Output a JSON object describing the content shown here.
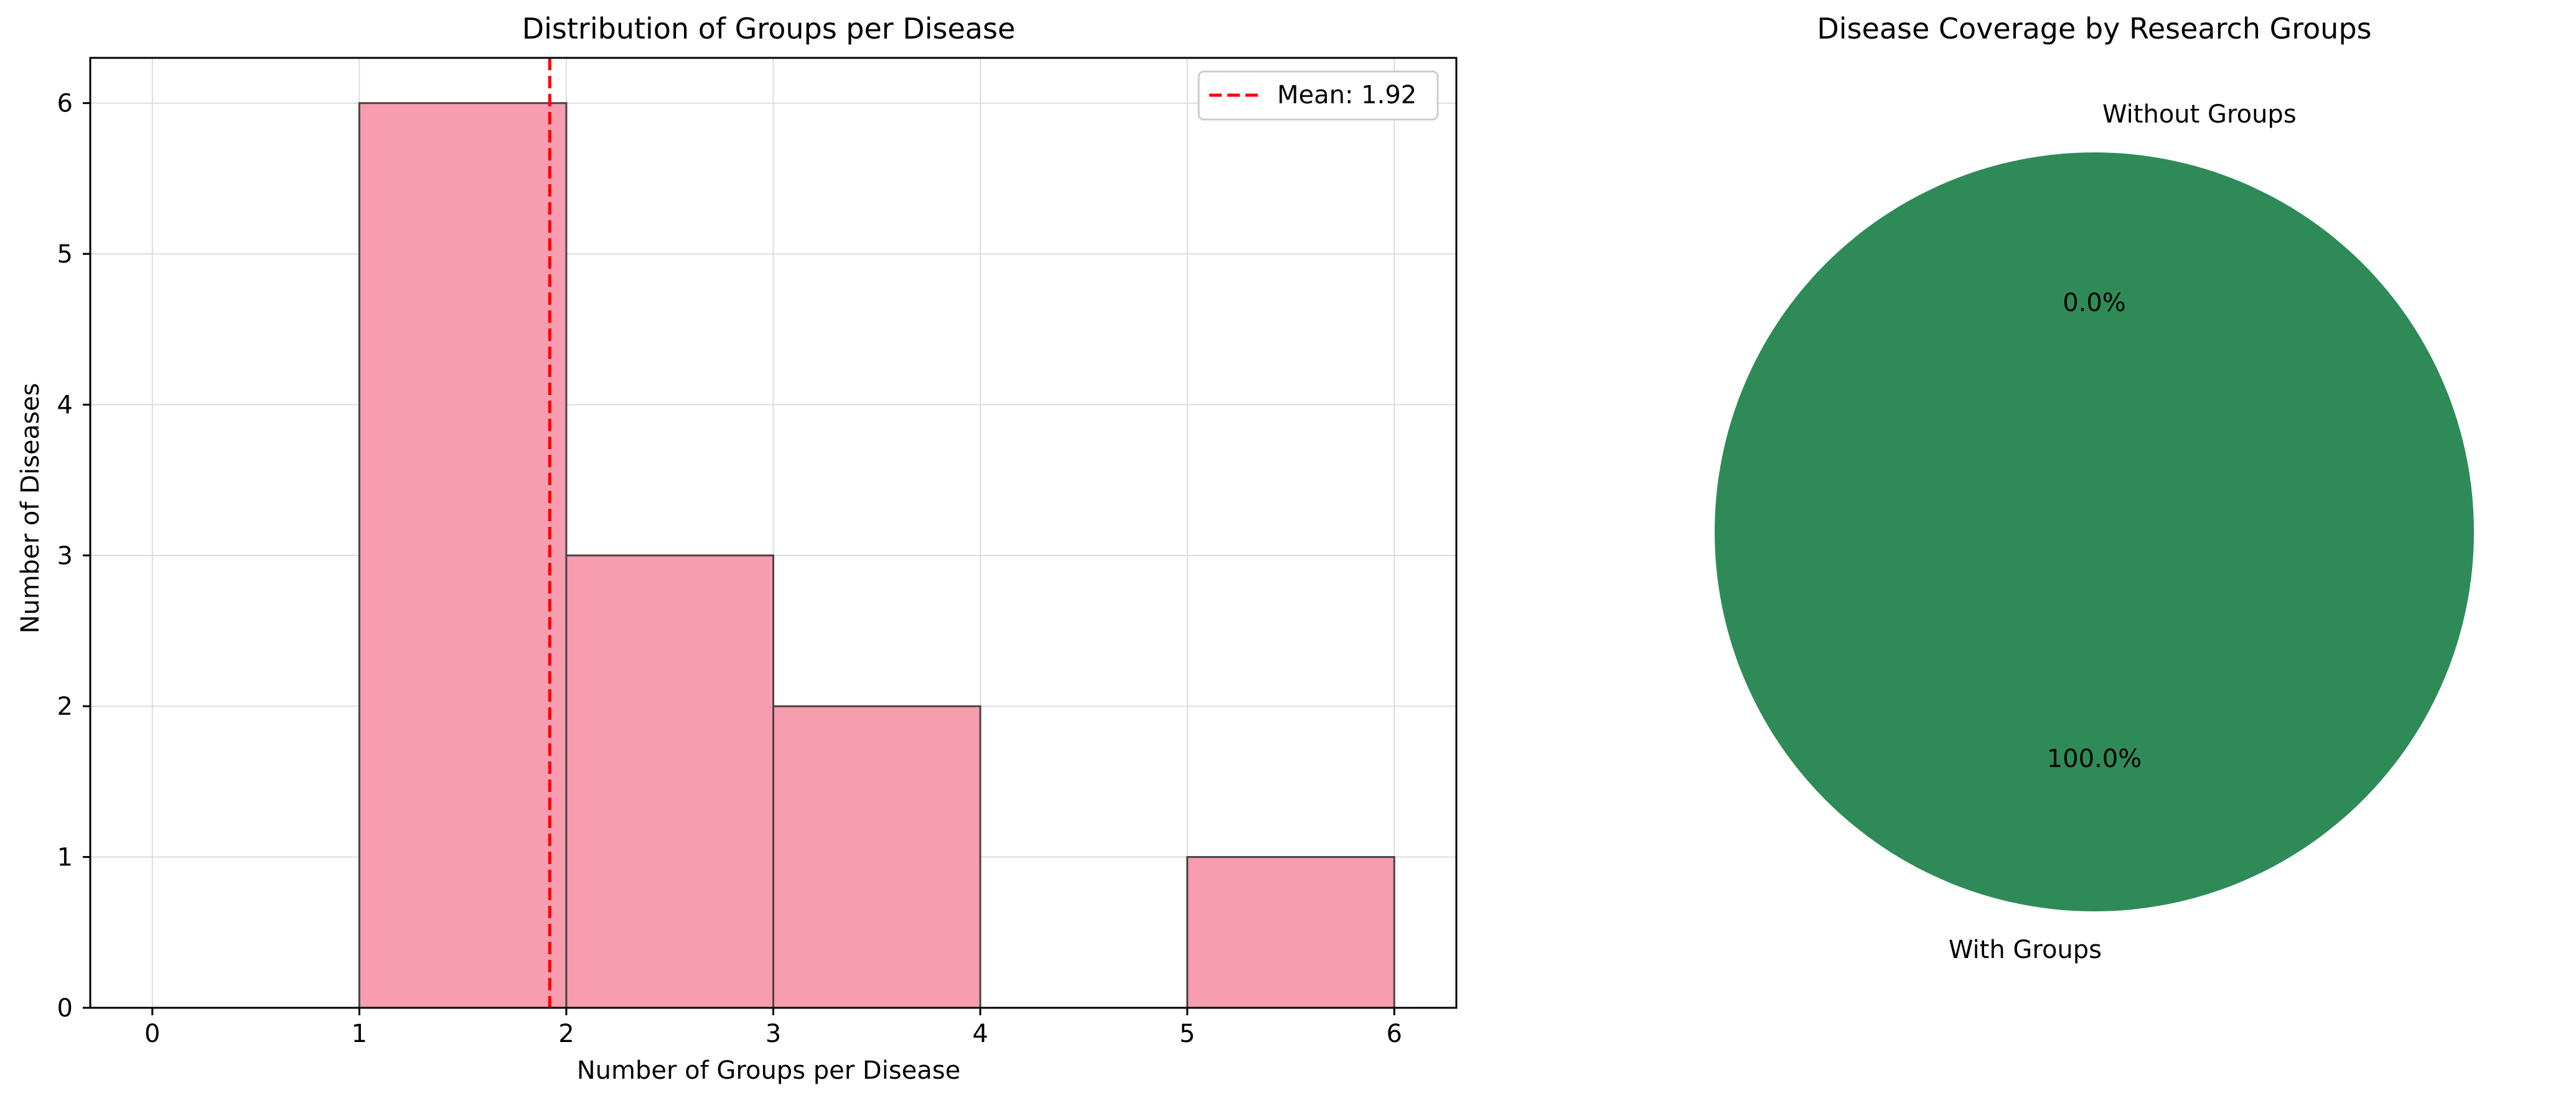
{
  "chart_data": [
    {
      "type": "bar",
      "title": "Distribution of Groups per Disease",
      "xlabel": "Number of Groups per Disease",
      "ylabel": "Number of Diseases",
      "xlim": [
        -0.3,
        6.3
      ],
      "ylim": [
        0,
        6.3
      ],
      "xticks": [
        0,
        1,
        2,
        3,
        4,
        5,
        6
      ],
      "yticks": [
        0,
        1,
        2,
        3,
        4,
        5,
        6
      ],
      "grid": true,
      "bins": [
        {
          "x0": 0,
          "x1": 1,
          "value": 0
        },
        {
          "x0": 1,
          "x1": 2,
          "value": 6
        },
        {
          "x0": 2,
          "x1": 3,
          "value": 3
        },
        {
          "x0": 3,
          "x1": 4,
          "value": 2
        },
        {
          "x0": 4,
          "x1": 5,
          "value": 0
        },
        {
          "x0": 5,
          "x1": 6,
          "value": 1
        }
      ],
      "bar_color": "#f89caf",
      "mean_line": {
        "value": 1.92,
        "label": "Mean: 1.92",
        "color": "#ff0000",
        "style": "dashed"
      },
      "legend_position": "top-right"
    },
    {
      "type": "pie",
      "title": "Disease Coverage by Research Groups",
      "slices": [
        {
          "label": "With Groups",
          "value": 100.0,
          "pct_label": "100.0%",
          "color": "#2e8b57"
        },
        {
          "label": "Without Groups",
          "value": 0.0,
          "pct_label": "0.0%",
          "color": "#f89caf"
        }
      ]
    }
  ]
}
